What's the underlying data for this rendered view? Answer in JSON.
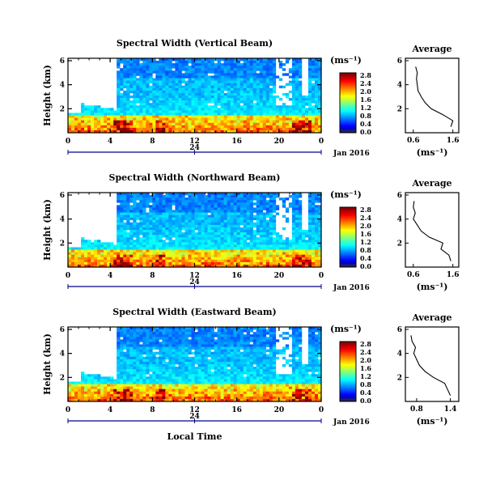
{
  "chart_data": [
    {
      "type": "heatmap",
      "title": "Spectral Width (Vertical Beam)",
      "ylabel": "Height (km)",
      "x_ticks": [
        "0",
        "4",
        "8",
        "12",
        "16",
        "20",
        "0"
      ],
      "y_ticks": [
        "6",
        "4",
        "2"
      ],
      "date_tick": "24",
      "date_label": "Jan 2016",
      "colorbar_label": "(ms⁻¹)",
      "colorbar_ticks": [
        "2.8",
        "2.4",
        "2.0",
        "1.6",
        "1.2",
        "0.8",
        "0.4",
        "0.0"
      ],
      "profile": {
        "title": "Average",
        "xlabel": "(ms⁻¹)",
        "x_ticks": [
          "0.6",
          "1.6"
        ],
        "y_ticks": [
          "6",
          "4",
          "2"
        ],
        "heights_km": [
          0.5,
          1.0,
          1.5,
          2.0,
          2.5,
          3.0,
          3.5,
          4.0,
          4.5,
          5.0,
          5.5
        ],
        "values": [
          1.55,
          1.6,
          1.35,
          1.05,
          0.9,
          0.8,
          0.72,
          0.7,
          0.68,
          0.7,
          0.66
        ]
      }
    },
    {
      "type": "heatmap",
      "title": "Spectral Width (Northward Beam)",
      "ylabel": "Height (km)",
      "x_ticks": [
        "0",
        "4",
        "8",
        "12",
        "16",
        "20",
        "0"
      ],
      "y_ticks": [
        "6",
        "4",
        "2"
      ],
      "date_tick": "24",
      "date_label": "Jan 2016",
      "colorbar_label": "(ms⁻¹)",
      "colorbar_ticks": [
        "2.8",
        "2.4",
        "2.0",
        "1.6",
        "1.2",
        "0.8",
        "0.4",
        "0.0"
      ],
      "profile": {
        "title": "Average",
        "xlabel": "(ms⁻¹)",
        "x_ticks": [
          "0.6",
          "1.6"
        ],
        "y_ticks": [
          "6",
          "4",
          "2"
        ],
        "heights_km": [
          0.5,
          1.0,
          1.5,
          2.0,
          2.5,
          3.0,
          3.5,
          4.0,
          4.5,
          5.0,
          5.5
        ],
        "values": [
          1.55,
          1.5,
          1.3,
          1.35,
          1.0,
          0.8,
          0.7,
          0.6,
          0.65,
          0.6,
          0.62
        ]
      }
    },
    {
      "type": "heatmap",
      "title": "Spectral Width (Eastward Beam)",
      "ylabel": "Height (km)",
      "x_ticks": [
        "0",
        "4",
        "8",
        "12",
        "16",
        "20",
        "0"
      ],
      "y_ticks": [
        "6",
        "4",
        "2"
      ],
      "date_tick": "24",
      "date_label": "Jan 2016",
      "xlabel": "Local Time",
      "colorbar_label": "(ms⁻¹)",
      "colorbar_ticks": [
        "2.8",
        "2.4",
        "2.0",
        "1.6",
        "1.2",
        "0.8",
        "0.4",
        "0.0"
      ],
      "profile": {
        "title": "Average",
        "xlabel": "(ms⁻¹)",
        "x_ticks": [
          "0.8",
          "1.4"
        ],
        "y_ticks": [
          "6",
          "4",
          "2"
        ],
        "heights_km": [
          0.5,
          1.0,
          1.5,
          2.0,
          2.5,
          3.0,
          3.5,
          4.0,
          4.5,
          5.0,
          5.5
        ],
        "values": [
          1.4,
          1.35,
          1.3,
          1.1,
          0.95,
          0.85,
          0.8,
          0.75,
          0.78,
          0.72,
          0.7
        ]
      }
    }
  ]
}
